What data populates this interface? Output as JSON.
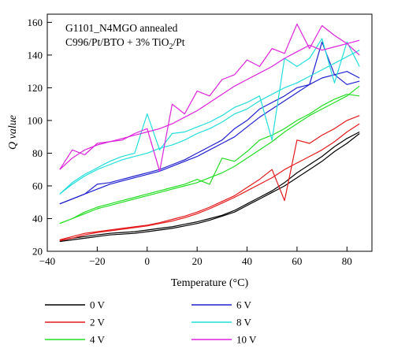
{
  "chart_data": {
    "type": "line",
    "annotations": [
      "G1101_N4MGO annealed",
      "C996/Pt/BTO + 3% TiO",
      "2",
      "/Pt"
    ],
    "xlabel": "Temperature (°C)",
    "ylabel": "Q value",
    "xlim": [
      -40,
      90
    ],
    "ylim": [
      20,
      165
    ],
    "xticks": [
      -40,
      -20,
      0,
      20,
      40,
      60,
      80
    ],
    "yticks": [
      20,
      40,
      60,
      80,
      100,
      120,
      140,
      160
    ],
    "xtick_labels": [
      "−40",
      "−20",
      "0",
      "20",
      "40",
      "60",
      "80"
    ],
    "ytick_labels": [
      "20",
      "40",
      "60",
      "80",
      "100",
      "120",
      "140",
      "160"
    ],
    "grid": false,
    "legend_position": "bottom",
    "x": [
      -35,
      -30,
      -25,
      -20,
      -15,
      -10,
      -5,
      0,
      5,
      10,
      15,
      20,
      25,
      30,
      35,
      40,
      45,
      50,
      55,
      60,
      65,
      70,
      75,
      80,
      85
    ],
    "series": [
      {
        "name": "0 V",
        "color": "#000000",
        "lines": [
          [
            26,
            27,
            28,
            29,
            30,
            30.5,
            31,
            32,
            33,
            34,
            35.5,
            37,
            39,
            41.5,
            44,
            48,
            52,
            56,
            60,
            65,
            70,
            75,
            81,
            86,
            92
          ],
          [
            26.5,
            28,
            29,
            30,
            31,
            31.5,
            32,
            33,
            34,
            35,
            36.5,
            38,
            40,
            42,
            45,
            49,
            53,
            57,
            62,
            68,
            73,
            78,
            84,
            89,
            93
          ]
        ]
      },
      {
        "name": "2 V",
        "color": "#e41a1c",
        "lines": [
          [
            26.5,
            28,
            30,
            31.5,
            32.5,
            33.5,
            34.5,
            35.5,
            37,
            38.5,
            40.5,
            43,
            46,
            49.5,
            53,
            57,
            61,
            65,
            70,
            74,
            78,
            82,
            87,
            93,
            98
          ],
          [
            27,
            29,
            31,
            32,
            33,
            34,
            35,
            36,
            37.5,
            39.5,
            41.5,
            44,
            47,
            50.5,
            54,
            59,
            64,
            70,
            51,
            88,
            86,
            91,
            95,
            100,
            103
          ]
        ]
      },
      {
        "name": "4 V",
        "color": "#22dd22",
        "lines": [
          [
            37,
            40,
            43,
            46,
            48,
            50,
            52,
            54,
            56,
            58,
            60,
            62,
            65,
            68,
            72,
            77,
            82,
            87,
            93,
            98,
            103,
            107,
            111,
            115,
            121
          ],
          [
            37,
            40,
            44,
            47,
            49,
            51,
            53,
            55,
            57,
            59,
            61,
            64,
            61,
            77,
            75,
            81,
            88,
            91,
            95,
            100,
            104,
            109,
            113,
            116,
            115
          ]
        ]
      },
      {
        "name": "6 V",
        "color": "#2020d0",
        "lines": [
          [
            49,
            52,
            55,
            58,
            61,
            63,
            65,
            67,
            69,
            72,
            75,
            78,
            82,
            86,
            90,
            96,
            102,
            107,
            112,
            117,
            122,
            126,
            128,
            130,
            126
          ],
          [
            49,
            52,
            55,
            61,
            62,
            64,
            66,
            68,
            70,
            73,
            76,
            80,
            84,
            88,
            95,
            100,
            107,
            111,
            115,
            120,
            122,
            148,
            128,
            122,
            124
          ]
        ]
      },
      {
        "name": "8 V",
        "color": "#22dddd",
        "lines": [
          [
            55,
            61,
            66,
            70,
            73,
            76,
            78,
            80,
            83,
            85,
            88,
            92,
            95,
            99,
            104,
            107,
            112,
            116,
            120,
            123,
            127,
            131,
            135,
            139,
            143
          ],
          [
            55,
            62,
            67,
            71,
            75,
            78,
            80,
            104,
            82,
            92,
            93,
            96,
            99,
            103,
            108,
            111,
            115,
            88,
            138,
            133,
            138,
            150,
            123,
            148,
            133
          ]
        ]
      },
      {
        "name": "10 V",
        "color": "#dd22dd",
        "lines": [
          [
            70,
            77,
            82,
            85,
            87,
            89,
            91,
            93,
            95,
            98,
            102,
            106,
            111,
            116,
            121,
            125,
            129,
            133,
            138,
            142,
            146,
            143,
            145,
            147,
            149
          ],
          [
            70,
            82,
            79,
            86,
            87,
            88,
            92,
            95,
            69,
            110,
            104,
            118,
            115,
            125,
            128,
            137,
            133,
            144,
            141,
            159,
            144,
            158,
            152,
            147,
            140
          ]
        ]
      }
    ]
  }
}
